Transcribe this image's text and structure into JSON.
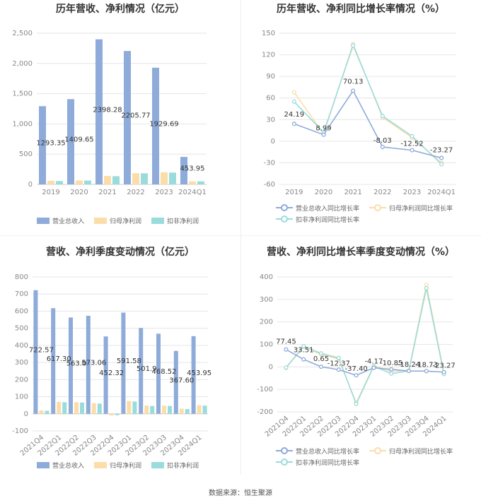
{
  "colors": {
    "revenue": "#8eabd9",
    "net_profit": "#fbddaa",
    "deducted_profit": "#9adcdc",
    "revenue_growth": "#8eabd9",
    "net_growth": "#fbddaa",
    "deducted_growth": "#9adcdc"
  },
  "legends": {
    "bars": [
      "营业总收入",
      "归母净利润",
      "扣非净利润"
    ],
    "lines": [
      "营业总收入同比增长率",
      "归母净利润同比增长率",
      "扣非净利润同比增长率"
    ]
  },
  "footer": "数据来源：恒生聚源",
  "chart_data": [
    {
      "type": "bar",
      "title": "历年营收、净利情况（亿元）",
      "categories": [
        "2019",
        "2020",
        "2021",
        "2022",
        "2023",
        "2024Q1"
      ],
      "series": [
        {
          "name": "营业总收入",
          "values": [
            1293.35,
            1409.65,
            2398.28,
            2205.77,
            1929.69,
            453.95
          ]
        },
        {
          "name": "归母净利润",
          "values": [
            60,
            65,
            140,
            185,
            200,
            50
          ]
        },
        {
          "name": "扣非净利润",
          "values": [
            55,
            63,
            135,
            183,
            195,
            50
          ]
        }
      ],
      "data_labels": [
        "1293.35",
        "1409.65",
        "2398.28",
        "2205.77",
        "1929.69",
        "453.95"
      ],
      "ylim": [
        0,
        2500
      ],
      "yticks": [
        0,
        500,
        1000,
        1500,
        2000,
        2500
      ],
      "ytick_labels": [
        "0",
        "500",
        "1,000",
        "1,500",
        "2,000",
        "2,500"
      ]
    },
    {
      "type": "line",
      "title": "历年营收、净利同比增长率情况（%）",
      "categories": [
        "2019",
        "2020",
        "2021",
        "2022",
        "2023",
        "2024Q1"
      ],
      "series": [
        {
          "name": "营业总收入同比增长率",
          "values": [
            24.19,
            8.99,
            70.13,
            -8.03,
            -12.52,
            -23.27
          ]
        },
        {
          "name": "归母净利润同比增长率",
          "values": [
            68,
            10,
            135,
            33,
            5,
            -30
          ]
        },
        {
          "name": "扣非净利润同比增长率",
          "values": [
            55,
            12,
            133,
            35,
            7,
            -32
          ]
        }
      ],
      "data_labels": [
        "24.19",
        "8.99",
        "70.13",
        "-8.03",
        "-12.52",
        "-23.27"
      ],
      "ylim": [
        -60,
        150
      ],
      "yticks": [
        -60,
        -30,
        0,
        30,
        60,
        90,
        120,
        150
      ],
      "ytick_labels": [
        "-60",
        "-30",
        "0",
        "30",
        "60",
        "90",
        "120",
        "150"
      ]
    },
    {
      "type": "bar",
      "title": "营收、净利季度变动情况（亿元）",
      "categories": [
        "2021Q4",
        "2022Q1",
        "2022Q2",
        "2022Q3",
        "2022Q4",
        "2023Q1",
        "2023Q2",
        "2023Q3",
        "2023Q4",
        "2024Q1"
      ],
      "series": [
        {
          "name": "营业总收入",
          "values": [
            722.57,
            617.3,
            563.0,
            573.06,
            452.32,
            591.58,
            501.9,
            468.52,
            367.6,
            453.95
          ]
        },
        {
          "name": "归母净利润",
          "values": [
            20,
            70,
            68,
            62,
            -10,
            75,
            48,
            48,
            30,
            50
          ]
        },
        {
          "name": "扣非净利润",
          "values": [
            18,
            68,
            66,
            60,
            -8,
            72,
            46,
            46,
            28,
            48
          ]
        }
      ],
      "data_labels": [
        "722.57",
        "617.30",
        "563.0",
        "573.06",
        "452.32",
        "591.58",
        "501.9",
        "468.52",
        "367.60",
        "453.95"
      ],
      "ylim": [
        -100,
        800
      ],
      "yticks": [
        -100,
        0,
        100,
        200,
        300,
        400,
        500,
        600,
        700,
        800
      ],
      "ytick_labels": [
        "-100",
        "0",
        "100",
        "200",
        "300",
        "400",
        "500",
        "600",
        "700",
        "800"
      ]
    },
    {
      "type": "line",
      "title": "营收、净利同比增长率季度变动情况（%）",
      "categories": [
        "2021Q4",
        "2022Q1",
        "2022Q2",
        "2022Q3",
        "2022Q4",
        "2023Q1",
        "2023Q2",
        "2023Q3",
        "2023Q4",
        "2024Q1"
      ],
      "series": [
        {
          "name": "营业总收入同比增长率",
          "values": [
            77.45,
            33.51,
            0.65,
            -12.37,
            -37.4,
            -4.17,
            -10.85,
            -18.24,
            -18.73,
            -23.27
          ]
        },
        {
          "name": "归母净利润同比增长率",
          "values": [
            -5,
            90,
            55,
            35,
            -160,
            5,
            -20,
            -15,
            365,
            -25
          ]
        },
        {
          "name": "扣非净利润同比增长率",
          "values": [
            -3,
            92,
            60,
            40,
            -165,
            3,
            -30,
            -18,
            350,
            -32
          ]
        }
      ],
      "data_labels": [
        "77.45",
        "33.51",
        "0.65",
        "-12.37",
        "-37.40",
        "-4.17",
        "-10.85",
        "-18.24",
        "-18.73",
        "-23.27"
      ],
      "ylim": [
        -200,
        400
      ],
      "yticks": [
        -200,
        -100,
        0,
        100,
        200,
        300,
        400
      ],
      "ytick_labels": [
        "-200",
        "-100",
        "0",
        "100",
        "200",
        "300",
        "400"
      ]
    }
  ]
}
